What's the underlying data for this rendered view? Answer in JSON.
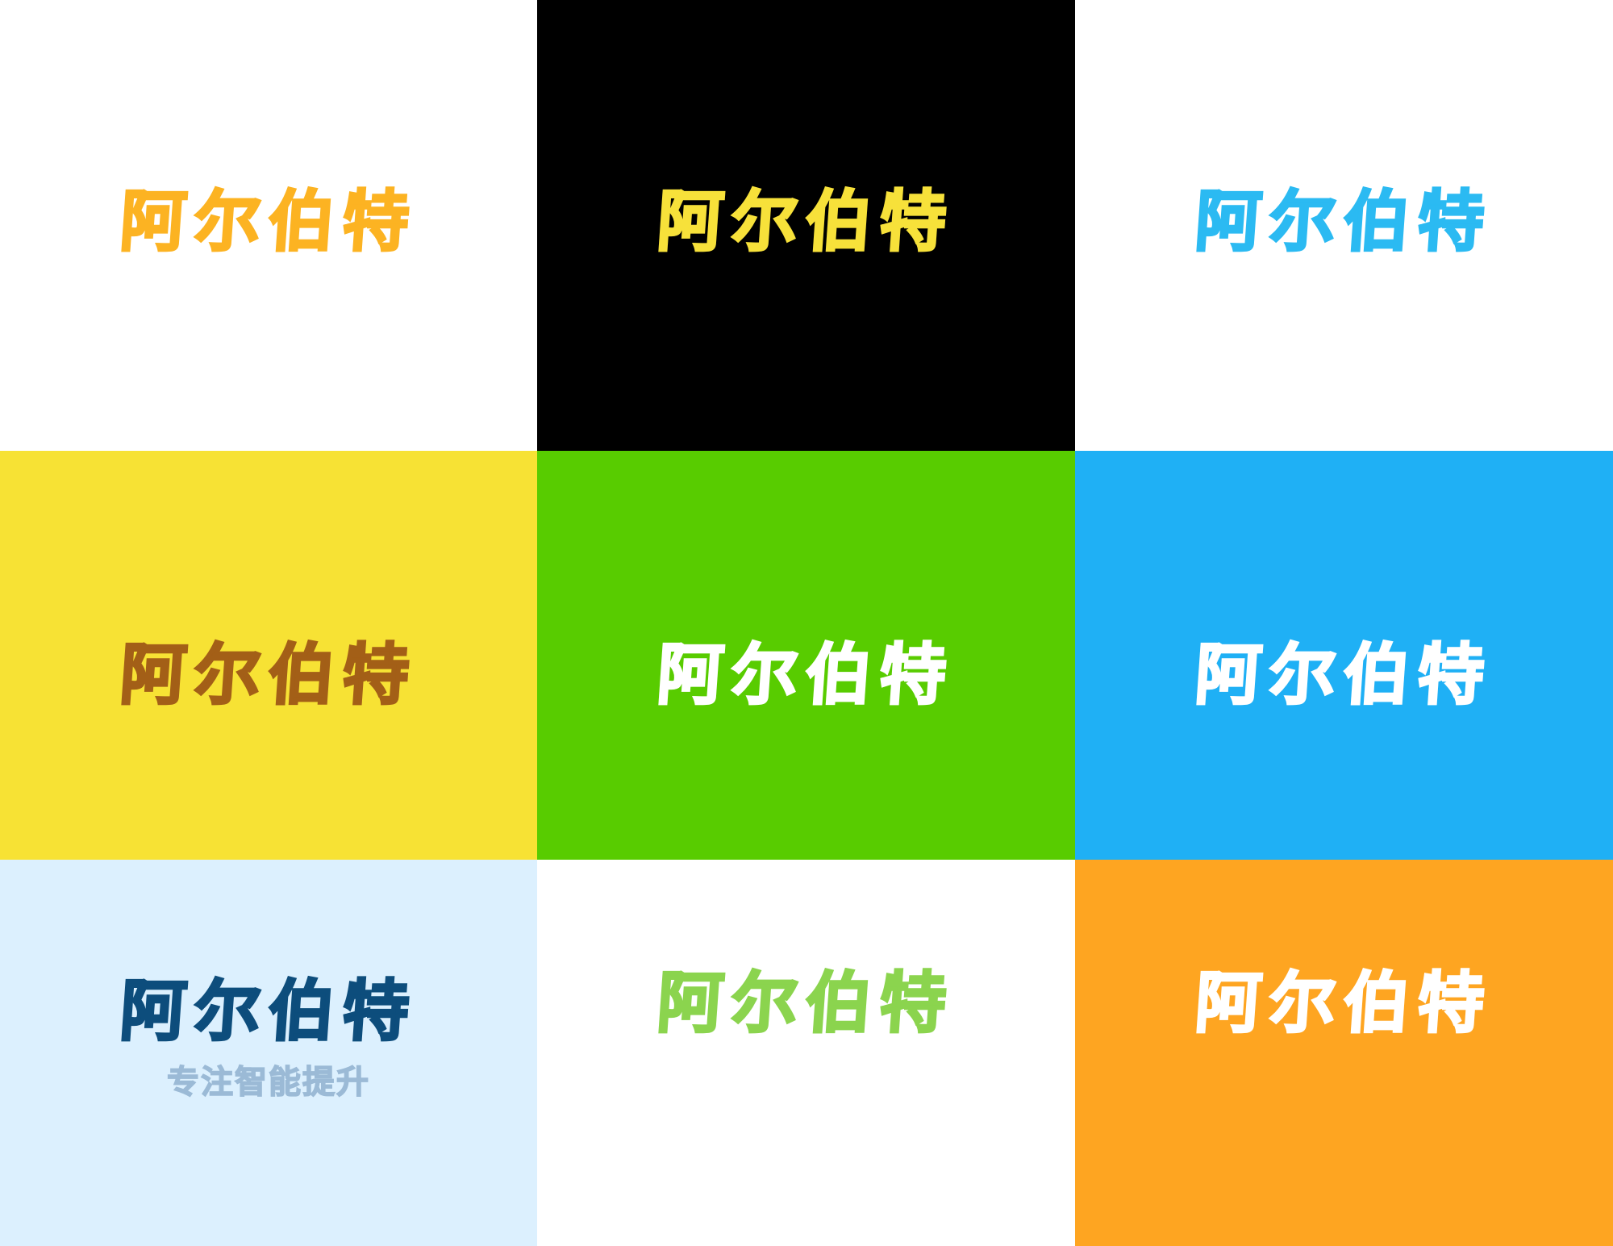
{
  "tiles": [
    {
      "text": "阿尔伯特",
      "bg": "#ffffff",
      "color": "#fcb322"
    },
    {
      "text": "阿尔伯特",
      "bg": "#000000",
      "color": "#f7e13a"
    },
    {
      "text": "阿尔伯特",
      "bg": "#ffffff",
      "color": "#2bbaf2"
    },
    {
      "text": "阿尔伯特",
      "bg": "#f7e234",
      "color": "#a35f17"
    },
    {
      "text": "阿尔伯特",
      "bg": "#58cc00",
      "color": "#ffffff"
    },
    {
      "text": "阿尔伯特",
      "bg": "#1fb0f5",
      "color": "#ffffff"
    },
    {
      "text": "阿尔伯特",
      "tagline": "专注智能提升",
      "bg": "#dcf0fe",
      "color": "#0d4d7c",
      "tagline_color": "#9bbad6"
    },
    {
      "text": "阿尔伯特",
      "bg": "#ffffff",
      "color": "#8bd44e"
    },
    {
      "text": "阿尔伯特",
      "bg": "#fea521",
      "color": "#ffffff"
    }
  ]
}
